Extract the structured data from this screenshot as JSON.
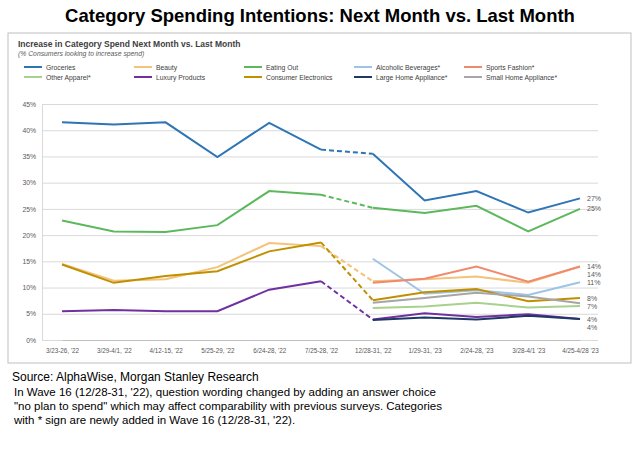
{
  "chart_data": {
    "type": "line",
    "title": "Category Spending Intentions: Next Month vs. Last Month",
    "subtitle": "Increase in Category Spend Next Month vs. Last Month",
    "y_label": "(% Consumers looking to increase spend)",
    "source": "Source: AlphaWise, Morgan Stanley Research",
    "notes": [
      "In Wave 16 (12/28-31, '22), question wording changed by adding an answer choice",
      "\"no plan to spend\" which may affect comparability with previous surveys. Categories",
      "with * sign are newly added in Wave 16 (12/28-31, '22)."
    ],
    "categories": [
      "3/23-26, '22",
      "3/29-4/1, '22",
      "4/12-15, '22",
      "5/25-29, '22",
      "6/24-28, '22",
      "7/25-28, '22",
      "12/28-31, '22",
      "1/29-31, '23",
      "2/24-28, '23",
      "3/28-4/1 '23",
      "4/25-4/28 '23"
    ],
    "ylim": [
      0,
      45
    ],
    "yticks": [
      {
        "value": 0,
        "label": "0%"
      },
      {
        "value": 5,
        "label": "5%"
      },
      {
        "value": 10,
        "label": "10%"
      },
      {
        "value": 15,
        "label": "15%"
      },
      {
        "value": 20,
        "label": "20%"
      },
      {
        "value": 25,
        "label": "25%"
      },
      {
        "value": 30,
        "label": "30%"
      },
      {
        "value": 35,
        "label": "35%"
      },
      {
        "value": 40,
        "label": "40%"
      },
      {
        "value": 45,
        "label": "45%"
      }
    ],
    "grid": true,
    "legend": "top",
    "data_labels": true,
    "series": [
      {
        "name": "Groceries",
        "color": "#2e75b6",
        "values": [
          41.5,
          41.1,
          41.5,
          34.9,
          41.4,
          36.3,
          35.5,
          26.6,
          28.4,
          24.3,
          27
        ],
        "value_labels": [
          null,
          null,
          null,
          null,
          null,
          null,
          null,
          null,
          null,
          null,
          "27%"
        ]
      },
      {
        "name": "Beauty",
        "color": "#f4c27a",
        "values": [
          14.5,
          11.3,
          11.6,
          13.9,
          18.5,
          17.9,
          11.2,
          11.6,
          12.1,
          10.9,
          14
        ],
        "value_labels": [
          null,
          null,
          null,
          null,
          null,
          null,
          null,
          null,
          null,
          null,
          "14%"
        ]
      },
      {
        "name": "Eating Out",
        "color": "#5cb85c",
        "values": [
          22.8,
          20.7,
          20.6,
          21.9,
          28.4,
          27.7,
          25.2,
          24.2,
          25.6,
          20.7,
          25
        ],
        "value_labels": [
          null,
          null,
          null,
          null,
          null,
          null,
          null,
          null,
          null,
          null,
          "25%"
        ]
      },
      {
        "name": "Alcoholic Beverages*",
        "color": "#9dc3e6",
        "values": [
          null,
          null,
          null,
          null,
          null,
          null,
          15.5,
          8.8,
          9.5,
          8.6,
          11
        ],
        "value_labels": [
          null,
          null,
          null,
          null,
          null,
          null,
          null,
          null,
          null,
          null,
          "11%"
        ]
      },
      {
        "name": "Sports Fashion*",
        "color": "#f08a6c",
        "values": [
          null,
          null,
          null,
          null,
          null,
          null,
          10.9,
          11.7,
          14,
          11.1,
          14
        ],
        "value_labels": [
          null,
          null,
          null,
          null,
          null,
          null,
          null,
          null,
          null,
          null,
          "14%"
        ]
      },
      {
        "name": "Other Apparel*",
        "color": "#a9d18e",
        "values": [
          null,
          null,
          null,
          null,
          null,
          null,
          6.1,
          6.4,
          7.1,
          6.2,
          6.5
        ]
      },
      {
        "name": "Luxury Products",
        "color": "#7030a0",
        "values": [
          5.5,
          5.7,
          5.5,
          5.5,
          9.6,
          11.2,
          3.9,
          5.1,
          4.4,
          4.9,
          4
        ],
        "value_labels": [
          null,
          null,
          null,
          null,
          null,
          null,
          null,
          null,
          null,
          null,
          "4%"
        ]
      },
      {
        "name": "Consumer Electronics",
        "color": "#bf9000",
        "values": [
          14.4,
          10.9,
          12.2,
          13.1,
          16.9,
          18.6,
          7.6,
          9.1,
          9.7,
          7.4,
          8
        ],
        "value_labels": [
          null,
          null,
          null,
          null,
          null,
          null,
          null,
          null,
          null,
          null,
          "8%"
        ]
      },
      {
        "name": "Large Home Appliance*",
        "color": "#1f3864",
        "values": [
          null,
          null,
          null,
          null,
          null,
          null,
          3.8,
          4.3,
          3.9,
          4.6,
          4
        ],
        "value_labels": [
          null,
          null,
          null,
          null,
          null,
          null,
          null,
          null,
          null,
          null,
          "4%"
        ]
      },
      {
        "name": "Small Home Appliance*",
        "color": "#a6a6a6",
        "values": [
          null,
          null,
          null,
          null,
          null,
          null,
          7.1,
          8,
          9,
          8.3,
          7
        ],
        "value_labels": [
          null,
          null,
          null,
          null,
          null,
          null,
          null,
          null,
          null,
          null,
          "7%"
        ]
      }
    ]
  }
}
